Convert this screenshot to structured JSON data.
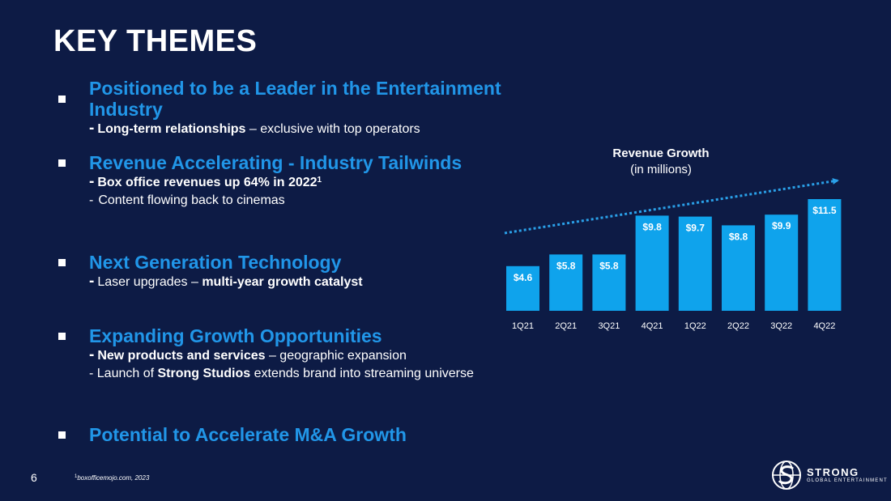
{
  "slide": {
    "title": "KEY THEMES",
    "page_number": "6",
    "footnote_sup": "1",
    "footnote_text": "boxofficemojo.com, 2023"
  },
  "themes": [
    {
      "heading": "Positioned to be a Leader in the Entertainment Industry",
      "sub1_bold": "Long-term relationships",
      "sub1_rest": " – exclusive with top operators"
    },
    {
      "heading": "Revenue Accelerating - Industry Tailwinds",
      "sub1_bold": "Box office revenues up 64% in 2022",
      "sub1_sup": "1",
      "sub2": "Content flowing back to cinemas"
    },
    {
      "heading": "Next Generation Technology",
      "sub1_pre": "Laser upgrades – ",
      "sub1_bold": "multi-year growth catalyst"
    },
    {
      "heading": "Expanding Growth Opportunities",
      "sub1_bold": "New products and services",
      "sub1_rest": " – geographic expansion",
      "sub2_pre": "- Launch of ",
      "sub2_bold": "Strong Studios",
      "sub2_rest": " extends brand into streaming universe"
    },
    {
      "heading": "Potential to Accelerate M&A Growth"
    }
  ],
  "dash": "-",
  "chart_data": {
    "type": "bar",
    "title": "Revenue Growth",
    "subtitle": "(in millions)",
    "categories": [
      "1Q21",
      "2Q21",
      "3Q21",
      "4Q21",
      "1Q22",
      "2Q22",
      "3Q22",
      "4Q22"
    ],
    "values": [
      4.6,
      5.8,
      5.8,
      9.8,
      9.7,
      8.8,
      9.9,
      11.5
    ],
    "labels": [
      "$4.6",
      "$5.8",
      "$5.8",
      "$9.8",
      "$9.7",
      "$8.8",
      "$9.9",
      "$11.5"
    ],
    "bar_color": "#0fa3ec",
    "trend_color": "#2aa0e8",
    "ylim": [
      0,
      11.5
    ],
    "trend_arrow": true,
    "grid": false
  },
  "logo": {
    "icon": "globe-s-icon",
    "word": "STRONG",
    "sub": "GLOBAL ENTERTAINMENT"
  },
  "colors": {
    "background": "#0d1b45",
    "heading_blue": "#2196e8"
  }
}
